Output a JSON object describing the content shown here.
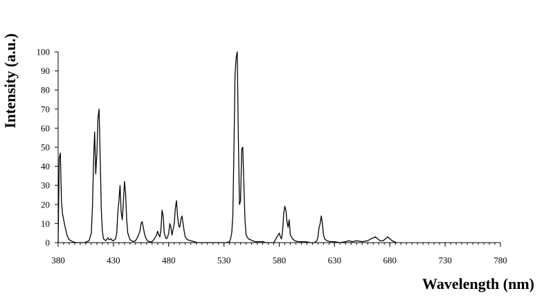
{
  "chart_data": {
    "type": "line",
    "xlabel": "Wavelength (nm)",
    "ylabel": "Intensity (a.u.)",
    "xlim": [
      380,
      780
    ],
    "ylim": [
      0,
      100
    ],
    "x_ticks": [
      380,
      430,
      480,
      530,
      580,
      630,
      680,
      730,
      780
    ],
    "y_ticks": [
      0,
      10,
      20,
      30,
      40,
      50,
      60,
      70,
      80,
      90,
      100
    ],
    "x_minor_step": 5,
    "grid": false,
    "legend": "none",
    "line_color": "#000000",
    "series": [
      {
        "points": [
          [
            380,
            0
          ],
          [
            381,
            44
          ],
          [
            382,
            47
          ],
          [
            383,
            22
          ],
          [
            384,
            15
          ],
          [
            386,
            9
          ],
          [
            388,
            4
          ],
          [
            390,
            1.5
          ],
          [
            393,
            0.5
          ],
          [
            396,
            0
          ],
          [
            404,
            0
          ],
          [
            406,
            0.5
          ],
          [
            408,
            1
          ],
          [
            410,
            5
          ],
          [
            411,
            18
          ],
          [
            412,
            42
          ],
          [
            413,
            58
          ],
          [
            414,
            36
          ],
          [
            415,
            46
          ],
          [
            416,
            65
          ],
          [
            417,
            70
          ],
          [
            418,
            46
          ],
          [
            419,
            18
          ],
          [
            420,
            6
          ],
          [
            421,
            2
          ],
          [
            423,
            1
          ],
          [
            425,
            2.5
          ],
          [
            426,
            1.5
          ],
          [
            428,
            2
          ],
          [
            429,
            1
          ],
          [
            430,
            1
          ],
          [
            432,
            2
          ],
          [
            433,
            5
          ],
          [
            434,
            16
          ],
          [
            435,
            22
          ],
          [
            436,
            30
          ],
          [
            437,
            16
          ],
          [
            438,
            12
          ],
          [
            439,
            21
          ],
          [
            440,
            32
          ],
          [
            441,
            26
          ],
          [
            442,
            12
          ],
          [
            443,
            5
          ],
          [
            445,
            1.5
          ],
          [
            448,
            0.5
          ],
          [
            450,
            1
          ],
          [
            452,
            3
          ],
          [
            454,
            6
          ],
          [
            455,
            10
          ],
          [
            456,
            11
          ],
          [
            457,
            8
          ],
          [
            458,
            5
          ],
          [
            459,
            3
          ],
          [
            460,
            1.5
          ],
          [
            462,
            0.5
          ],
          [
            465,
            0.5
          ],
          [
            467,
            2
          ],
          [
            469,
            4
          ],
          [
            470,
            6
          ],
          [
            471,
            4
          ],
          [
            472,
            3
          ],
          [
            473,
            7
          ],
          [
            474,
            17
          ],
          [
            475,
            14
          ],
          [
            476,
            5
          ],
          [
            477,
            3
          ],
          [
            478,
            2
          ],
          [
            479,
            3
          ],
          [
            480,
            5
          ],
          [
            481,
            10
          ],
          [
            482,
            8
          ],
          [
            483,
            4
          ],
          [
            484,
            7
          ],
          [
            485,
            10
          ],
          [
            486,
            18
          ],
          [
            487,
            22
          ],
          [
            488,
            14
          ],
          [
            489,
            9
          ],
          [
            490,
            8
          ],
          [
            491,
            12
          ],
          [
            492,
            14
          ],
          [
            493,
            10
          ],
          [
            494,
            6
          ],
          [
            495,
            3
          ],
          [
            497,
            1.5
          ],
          [
            500,
            1
          ],
          [
            503,
            0.5
          ],
          [
            506,
            0
          ],
          [
            532,
            0
          ],
          [
            535,
            0.5
          ],
          [
            536,
            2
          ],
          [
            537,
            5
          ],
          [
            538,
            14
          ],
          [
            539,
            48
          ],
          [
            540,
            88
          ],
          [
            541,
            97
          ],
          [
            542,
            100
          ],
          [
            543,
            55
          ],
          [
            544,
            20
          ],
          [
            545,
            22
          ],
          [
            546,
            49
          ],
          [
            547,
            50
          ],
          [
            548,
            30
          ],
          [
            549,
            12
          ],
          [
            550,
            4
          ],
          [
            552,
            2
          ],
          [
            554,
            1.5
          ],
          [
            556,
            1
          ],
          [
            558,
            0.5
          ],
          [
            562,
            0.5
          ],
          [
            565,
            0.5
          ],
          [
            568,
            0
          ],
          [
            575,
            0
          ],
          [
            577,
            2
          ],
          [
            579,
            4
          ],
          [
            580,
            5
          ],
          [
            581,
            3
          ],
          [
            582,
            2
          ],
          [
            583,
            6
          ],
          [
            584,
            15
          ],
          [
            585,
            19
          ],
          [
            586,
            17
          ],
          [
            587,
            11
          ],
          [
            588,
            8
          ],
          [
            589,
            12
          ],
          [
            590,
            4
          ],
          [
            592,
            2
          ],
          [
            594,
            1
          ],
          [
            597,
            0.5
          ],
          [
            600,
            0.5
          ],
          [
            604,
            0.5
          ],
          [
            608,
            0
          ],
          [
            612,
            0
          ],
          [
            614,
            1
          ],
          [
            615,
            3
          ],
          [
            616,
            8
          ],
          [
            617,
            10
          ],
          [
            618,
            14
          ],
          [
            619,
            10
          ],
          [
            620,
            4
          ],
          [
            621,
            2
          ],
          [
            623,
            1
          ],
          [
            626,
            0.5
          ],
          [
            630,
            0.5
          ],
          [
            635,
            0
          ],
          [
            640,
            0.5
          ],
          [
            643,
            1
          ],
          [
            646,
            0.5
          ],
          [
            650,
            1
          ],
          [
            655,
            0.5
          ],
          [
            660,
            1
          ],
          [
            663,
            2
          ],
          [
            665,
            2.5
          ],
          [
            667,
            3
          ],
          [
            669,
            2
          ],
          [
            671,
            1
          ],
          [
            674,
            1
          ],
          [
            676,
            2
          ],
          [
            678,
            3
          ],
          [
            680,
            2
          ],
          [
            682,
            1
          ],
          [
            684,
            0.5
          ],
          [
            686,
            0
          ]
        ]
      }
    ]
  }
}
